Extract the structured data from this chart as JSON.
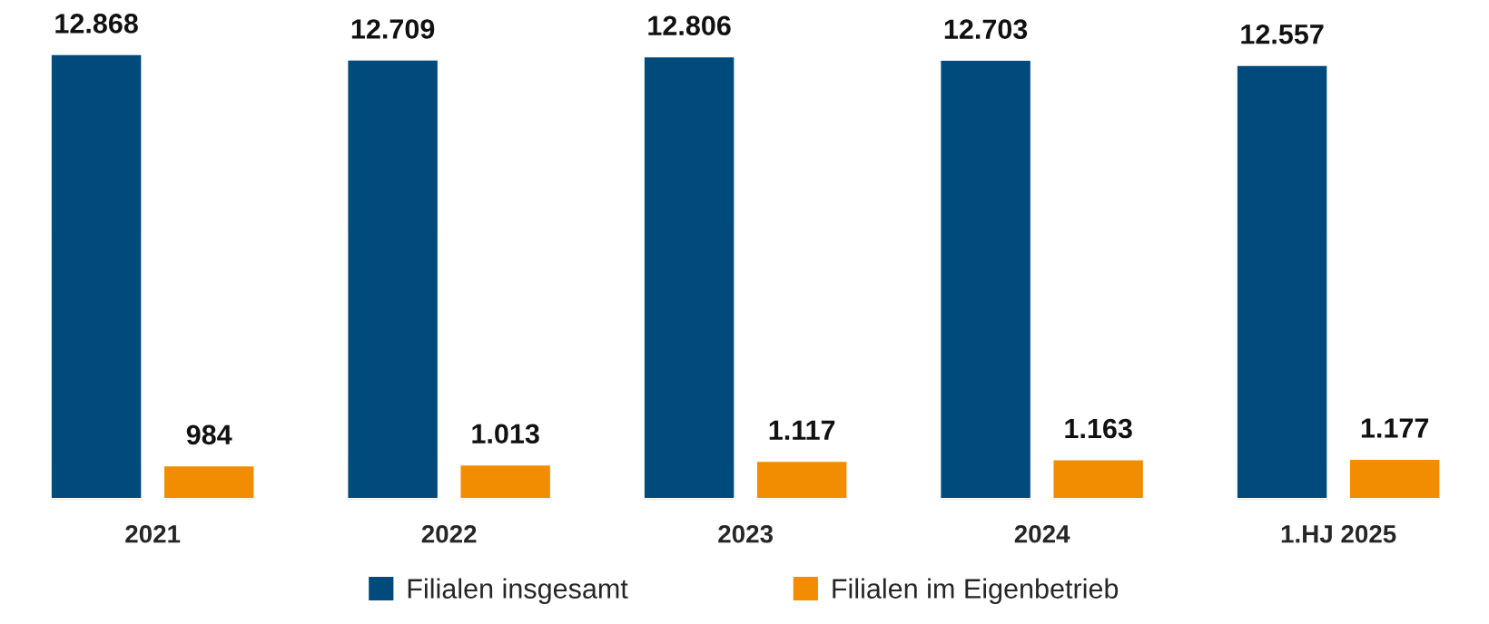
{
  "chart_data": {
    "type": "bar",
    "categories": [
      "2021",
      "2022",
      "2023",
      "2024",
      "1.HJ 2025"
    ],
    "series": [
      {
        "name": "Filialen insgesamt",
        "color": "#004a7c",
        "values": [
          12868,
          12709,
          12806,
          12703,
          12557
        ],
        "value_labels": [
          "12.868",
          "12.709",
          "12.806",
          "12.703",
          "12.557"
        ]
      },
      {
        "name": "Filialen im Eigenbetrieb",
        "color": "#f28c00",
        "values": [
          984,
          1013,
          1117,
          1163,
          1177
        ],
        "value_labels": [
          "984",
          "1.013",
          "1.117",
          "1.163",
          "1.177"
        ]
      }
    ],
    "legend": "bottom",
    "grid": false
  }
}
